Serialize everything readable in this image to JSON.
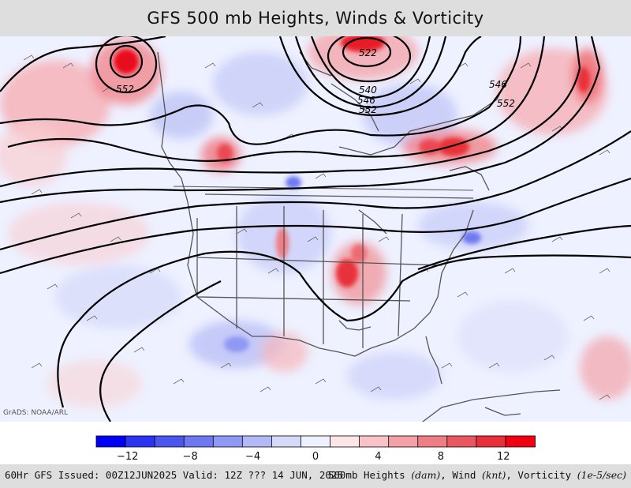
{
  "title": "GFS 500 mb Heights, Winds & Vorticity",
  "credit": "GrADS: NOAA/ARL",
  "contour_labels": [
    "552",
    "522",
    "540",
    "546",
    "552",
    "546",
    "552"
  ],
  "colorbar": {
    "min": -14,
    "max": 14,
    "step": 2,
    "tick_labels": [
      "−12",
      "−8",
      "−4",
      "0",
      "4",
      "8",
      "12"
    ],
    "colors": [
      "#0000f5",
      "#2a33f2",
      "#4a56ee",
      "#6e79ef",
      "#8f98f3",
      "#b3b9f7",
      "#d6daf9",
      "#eef1ff",
      "#fde6e8",
      "#f8c2c7",
      "#f3a0a6",
      "#ee7d84",
      "#e95860",
      "#e8303b",
      "#f00010"
    ]
  },
  "footer": {
    "left": "60Hr GFS Issued: 00Z12JUN2025 Valid: 12Z ??? 14 JUN, 2025",
    "right_prefix": "500mb Heights ",
    "right_heights_unit": "(dam)",
    "right_wind": ", Wind ",
    "right_wind_unit": "(knt)",
    "right_vort": ", Vorticity ",
    "right_vort_unit": "(1e-5/sec)"
  }
}
